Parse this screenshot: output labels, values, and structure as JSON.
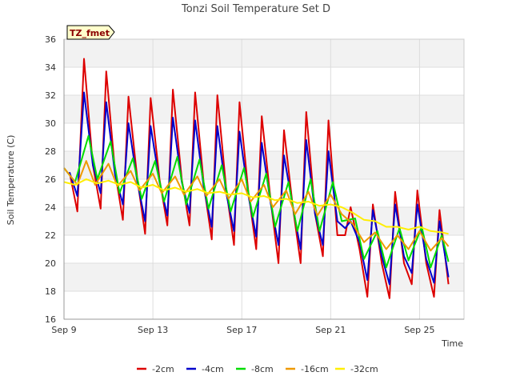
{
  "chart_data": {
    "type": "line",
    "title": "Tonzi Soil Temperature Set D",
    "xlabel": "Time",
    "ylabel": "Soil Temperature (C)",
    "badge": "TZ_fmet",
    "xlim": [
      0,
      18
    ],
    "ylim": [
      16,
      36
    ],
    "x_ticks": [
      {
        "value": 0,
        "label": "Sep 9"
      },
      {
        "value": 4,
        "label": "Sep 13"
      },
      {
        "value": 8,
        "label": "Sep 17"
      },
      {
        "value": 12,
        "label": "Sep 21"
      },
      {
        "value": 16,
        "label": "Sep 25"
      }
    ],
    "y_ticks": [
      16,
      18,
      20,
      22,
      24,
      26,
      28,
      30,
      32,
      34,
      36
    ],
    "grid": true,
    "legend_position": "bottom",
    "series": [
      {
        "name": "-2cm",
        "color": "#dd0000",
        "x": [
          0.25,
          0.6,
          0.9,
          1.3,
          1.65,
          1.9,
          2.3,
          2.65,
          2.9,
          3.3,
          3.65,
          3.9,
          4.3,
          4.65,
          4.9,
          5.3,
          5.65,
          5.9,
          6.3,
          6.65,
          6.9,
          7.3,
          7.65,
          7.9,
          8.3,
          8.65,
          8.9,
          9.3,
          9.65,
          9.9,
          10.3,
          10.65,
          10.9,
          11.3,
          11.65,
          11.9,
          12.3,
          12.65,
          12.9,
          13.3,
          13.65,
          13.9,
          14.3,
          14.65,
          14.9,
          15.3,
          15.65,
          15.9,
          16.3,
          16.65,
          16.9,
          17.3
        ],
        "y": [
          26.5,
          23.7,
          34.6,
          27.0,
          23.9,
          33.7,
          26.5,
          23.1,
          31.9,
          26.0,
          22.1,
          31.8,
          26.0,
          22.7,
          32.4,
          26.0,
          22.7,
          32.2,
          25.5,
          21.7,
          32.0,
          25.3,
          21.3,
          31.5,
          25.0,
          21.0,
          30.5,
          24.5,
          20.0,
          29.5,
          24.0,
          20.0,
          30.8,
          23.5,
          20.5,
          30.2,
          22.0,
          22.0,
          24.0,
          21.0,
          17.6,
          24.2,
          20.0,
          17.5,
          25.1,
          20.0,
          18.5,
          25.2,
          20.0,
          17.6,
          23.8,
          18.5
        ]
      },
      {
        "name": "-4cm",
        "color": "#0000cc",
        "x": [
          0.25,
          0.6,
          0.9,
          1.3,
          1.65,
          1.9,
          2.3,
          2.65,
          2.9,
          3.3,
          3.65,
          3.9,
          4.3,
          4.65,
          4.9,
          5.3,
          5.65,
          5.9,
          6.3,
          6.65,
          6.9,
          7.3,
          7.65,
          7.9,
          8.3,
          8.65,
          8.9,
          9.3,
          9.65,
          9.9,
          10.3,
          10.65,
          10.9,
          11.3,
          11.65,
          11.9,
          12.3,
          12.65,
          12.9,
          13.3,
          13.65,
          13.9,
          14.3,
          14.65,
          14.9,
          15.3,
          15.65,
          15.9,
          16.3,
          16.65,
          16.9,
          17.3
        ],
        "y": [
          26.5,
          24.8,
          32.2,
          27.0,
          25.0,
          31.5,
          26.3,
          24.2,
          30.0,
          25.8,
          23.0,
          29.8,
          25.8,
          23.4,
          30.4,
          25.8,
          23.6,
          30.2,
          25.3,
          22.6,
          29.8,
          25.0,
          22.3,
          29.4,
          24.8,
          21.9,
          28.6,
          24.3,
          21.3,
          27.7,
          24.0,
          21.0,
          28.8,
          23.5,
          21.3,
          28.0,
          23.0,
          22.5,
          23.0,
          21.5,
          18.8,
          23.8,
          20.5,
          18.5,
          24.2,
          20.5,
          19.3,
          24.2,
          20.3,
          18.6,
          23.0,
          19.0
        ]
      },
      {
        "name": "-8cm",
        "color": "#00dd00",
        "x": [
          0,
          0.5,
          1.1,
          1.5,
          2.1,
          2.5,
          3.1,
          3.5,
          4.1,
          4.5,
          5.1,
          5.5,
          6.1,
          6.5,
          7.1,
          7.5,
          8.1,
          8.5,
          9.1,
          9.5,
          10.1,
          10.5,
          11.1,
          11.5,
          12.1,
          12.5,
          13.1,
          13.5,
          14.1,
          14.5,
          15.1,
          15.5,
          16.1,
          16.5,
          17.0,
          17.3
        ],
        "y": [
          26.8,
          25.8,
          29.1,
          26.0,
          28.7,
          25.0,
          27.5,
          24.6,
          27.3,
          24.4,
          27.6,
          24.2,
          27.4,
          23.9,
          27.0,
          23.7,
          26.8,
          23.3,
          26.4,
          22.6,
          25.8,
          22.3,
          26.0,
          22.3,
          25.8,
          23.0,
          23.2,
          20.3,
          22.3,
          19.7,
          22.5,
          20.2,
          22.6,
          19.7,
          22.0,
          20.1
        ]
      },
      {
        "name": "-16cm",
        "color": "#ee9900",
        "x": [
          0,
          0.6,
          1.0,
          1.4,
          2.0,
          2.4,
          3.0,
          3.4,
          4.0,
          4.4,
          5.0,
          5.4,
          6.0,
          6.4,
          7.0,
          7.4,
          8.0,
          8.4,
          9.0,
          9.4,
          10.0,
          10.4,
          11.0,
          11.4,
          12.0,
          12.5,
          13.0,
          13.5,
          14.0,
          14.5,
          15.0,
          15.5,
          16.0,
          16.5,
          17.0,
          17.3
        ],
        "y": [
          26.8,
          25.6,
          27.3,
          25.6,
          27.1,
          25.5,
          26.6,
          25.2,
          26.4,
          25.0,
          26.2,
          24.9,
          26.2,
          24.8,
          26.0,
          24.6,
          26.0,
          24.4,
          25.6,
          24.0,
          25.2,
          23.5,
          25.1,
          23.4,
          24.9,
          23.5,
          22.8,
          21.5,
          22.2,
          21.0,
          22.0,
          21.0,
          22.3,
          20.9,
          21.8,
          21.2
        ]
      },
      {
        "name": "-32cm",
        "color": "#ffee00",
        "x": [
          0,
          0.5,
          1.0,
          1.5,
          2.0,
          2.5,
          3.0,
          3.5,
          4.0,
          4.5,
          5.0,
          5.5,
          6.0,
          6.5,
          7.0,
          7.5,
          8.0,
          8.5,
          9.0,
          9.5,
          10.0,
          10.5,
          11.0,
          11.5,
          12.0,
          12.5,
          13.0,
          13.5,
          14.0,
          14.5,
          15.0,
          15.5,
          16.0,
          16.5,
          17.0,
          17.3
        ],
        "y": [
          25.8,
          25.6,
          26.0,
          25.7,
          25.9,
          25.6,
          25.8,
          25.4,
          25.6,
          25.2,
          25.4,
          25.1,
          25.3,
          25.0,
          25.1,
          24.9,
          25.0,
          24.7,
          24.8,
          24.5,
          24.6,
          24.3,
          24.4,
          24.1,
          24.2,
          24.0,
          23.6,
          23.1,
          23.0,
          22.6,
          22.6,
          22.4,
          22.6,
          22.3,
          22.2,
          22.1
        ]
      }
    ]
  }
}
